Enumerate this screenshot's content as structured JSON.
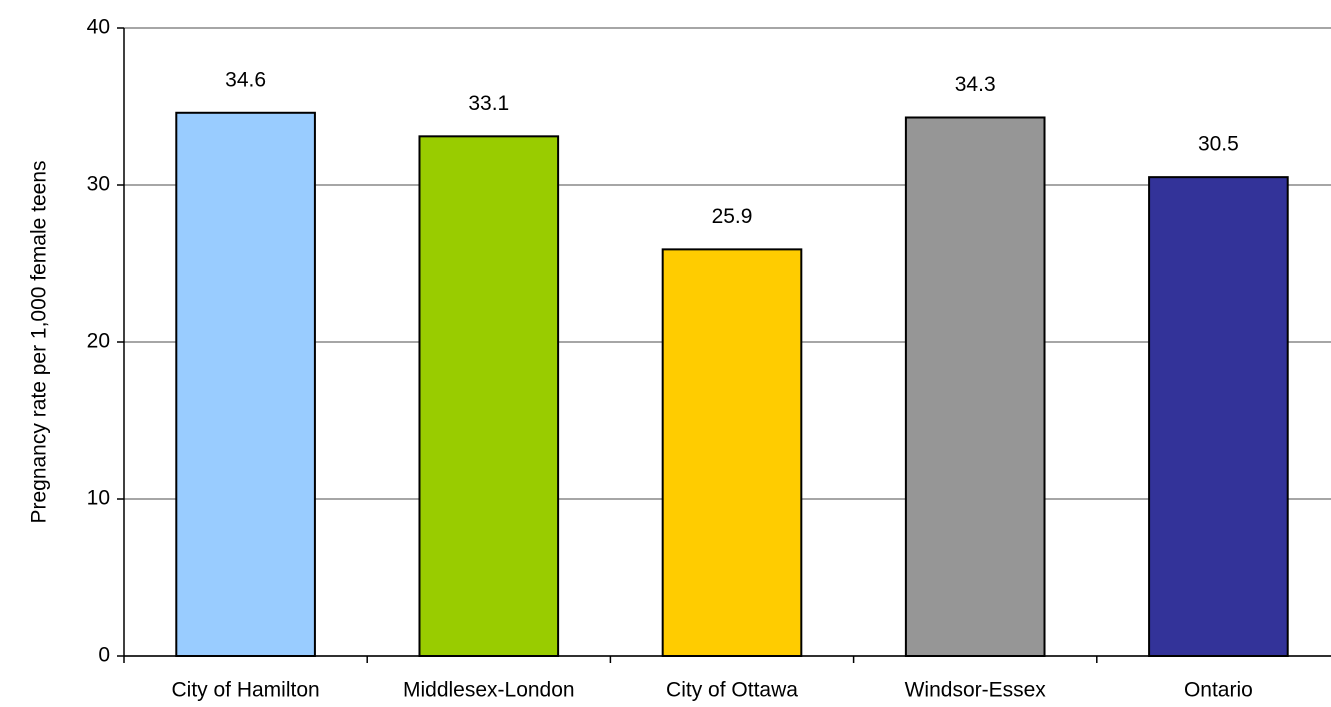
{
  "chart_data": {
    "type": "bar",
    "y_label": "Pregnancy rate per 1,000 female teens",
    "categories": [
      "City of Hamilton",
      "Middlesex-London",
      "City of Ottawa",
      "Windsor-Essex",
      "Ontario"
    ],
    "values": [
      34.6,
      33.1,
      25.9,
      34.3,
      30.5
    ],
    "colors": [
      "#99ccff",
      "#99cc00",
      "#ffcc00",
      "#969696",
      "#333399"
    ],
    "ylim": [
      0,
      40
    ],
    "yticks": [
      0,
      10,
      20,
      30,
      40
    ],
    "grid": true
  }
}
